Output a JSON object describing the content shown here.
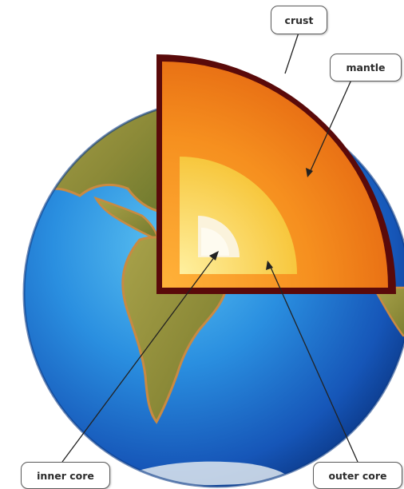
{
  "labels": {
    "crust": "crust",
    "mantle": "mantle",
    "inner_core": "inner core",
    "outer_core": "outer core"
  },
  "colors": {
    "ocean": "#1e7fd6",
    "land": "#9a9a3c",
    "crust": "#5a0a0a",
    "mantle": "#f07a1a",
    "outer_core": "#fbd04a",
    "inner_core": "#fbf3dc"
  }
}
